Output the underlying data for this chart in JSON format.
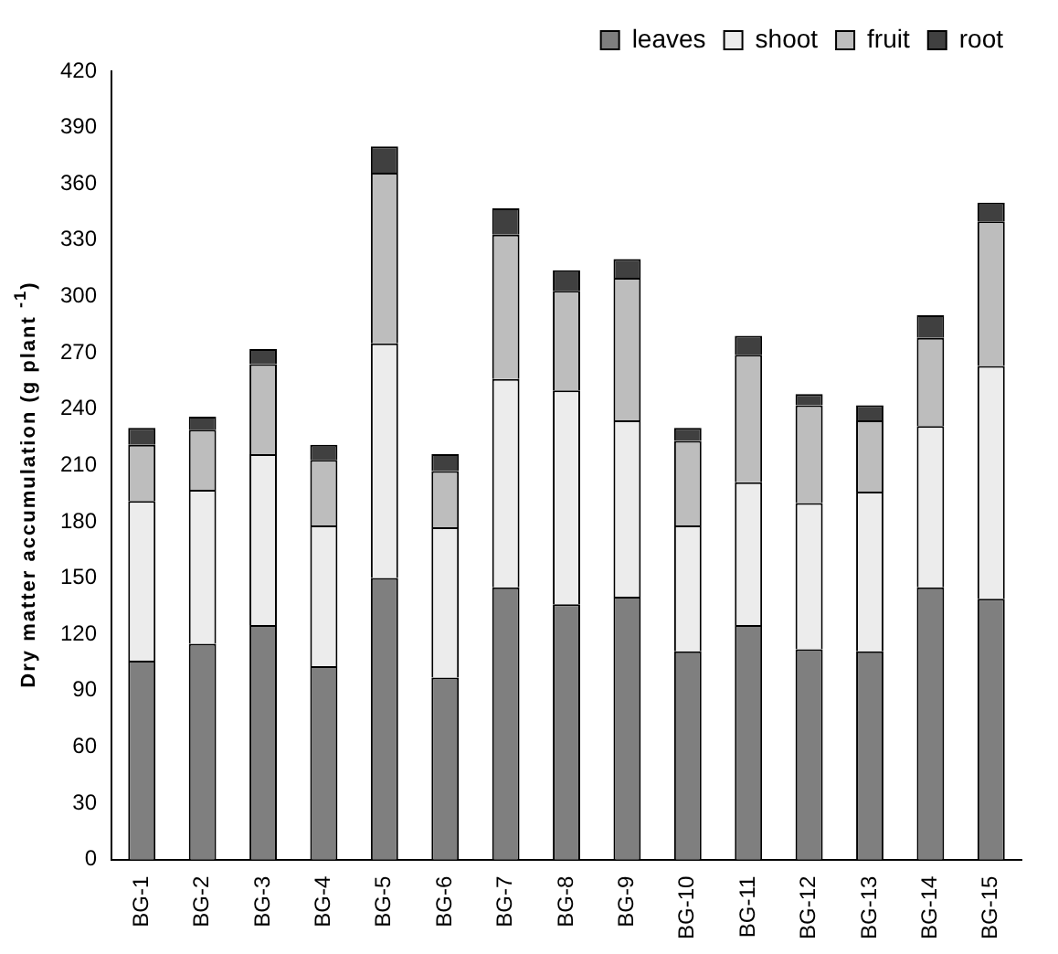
{
  "chart_data": {
    "type": "bar",
    "stacked": true,
    "ylabel": "Dry matter accumulation (g plant $^{-1}$)",
    "categories": [
      "BG-1",
      "BG-2",
      "BG-3",
      "BG-4",
      "BG-5",
      "BG-6",
      "BG-7",
      "BG-8",
      "BG-9",
      "BG-10",
      "BG-11",
      "BG-12",
      "BG-13",
      "BG-14",
      "BG-15"
    ],
    "series": [
      {
        "name": "leaves",
        "color": "#7f7f7f",
        "values": [
          106,
          115,
          125,
          103,
          150,
          97,
          145,
          136,
          140,
          111,
          125,
          112,
          111,
          145,
          139
        ]
      },
      {
        "name": "shoot",
        "color": "#ececec",
        "values": [
          85,
          82,
          91,
          75,
          125,
          80,
          111,
          114,
          94,
          67,
          76,
          78,
          85,
          86,
          124
        ]
      },
      {
        "name": "fruit",
        "color": "#bdbdbd",
        "values": [
          30,
          32,
          48,
          35,
          91,
          30,
          77,
          53,
          76,
          45,
          68,
          52,
          38,
          47,
          77
        ]
      },
      {
        "name": "root",
        "color": "#404040",
        "values": [
          9,
          7,
          8,
          8,
          14,
          9,
          14,
          11,
          10,
          7,
          10,
          6,
          8,
          12,
          10
        ]
      }
    ],
    "ylim": [
      0,
      420
    ],
    "yticks": [
      0,
      30,
      60,
      90,
      120,
      150,
      180,
      210,
      240,
      270,
      300,
      330,
      360,
      390,
      420
    ],
    "grid": false,
    "legend": "top right"
  }
}
